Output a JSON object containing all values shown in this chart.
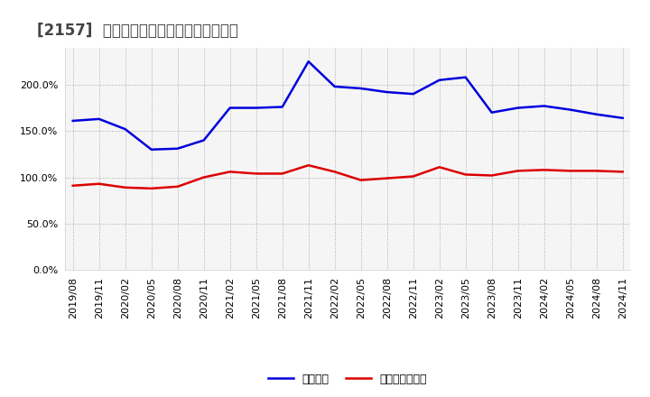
{
  "title": "[2157]  固定比率、固定長期適合率の推移",
  "x_labels": [
    "2019/08",
    "2019/11",
    "2020/02",
    "2020/05",
    "2020/08",
    "2020/11",
    "2021/02",
    "2021/05",
    "2021/08",
    "2021/11",
    "2022/02",
    "2022/05",
    "2022/08",
    "2022/11",
    "2023/02",
    "2023/05",
    "2023/08",
    "2023/11",
    "2024/02",
    "2024/05",
    "2024/08",
    "2024/11"
  ],
  "fixed_ratio": [
    161.0,
    163.0,
    152.0,
    130.0,
    131.0,
    140.0,
    175.0,
    175.0,
    176.0,
    225.0,
    198.0,
    196.0,
    192.0,
    190.0,
    205.0,
    208.0,
    170.0,
    175.0,
    177.0,
    173.0,
    168.0,
    164.0
  ],
  "fixed_long_term_ratio": [
    91.0,
    93.0,
    89.0,
    88.0,
    90.0,
    100.0,
    106.0,
    104.0,
    104.0,
    113.0,
    106.0,
    97.0,
    99.0,
    101.0,
    111.0,
    103.0,
    102.0,
    107.0,
    108.0,
    107.0,
    107.0,
    106.0
  ],
  "fixed_ratio_color": "#0000dd",
  "fixed_long_term_ratio_color": "#dd0000",
  "ylim": [
    0.0,
    240.0
  ],
  "yticks": [
    0.0,
    50.0,
    100.0,
    150.0,
    200.0
  ],
  "background_color": "#ffffff",
  "plot_background_color": "#f5f5f5",
  "grid_color": "#aaaaaa",
  "legend_fixed_ratio": "固定比率",
  "legend_fixed_long_term_ratio": "固定長期適合率",
  "title_fontsize": 12,
  "tick_fontsize": 8,
  "line_width": 1.8
}
